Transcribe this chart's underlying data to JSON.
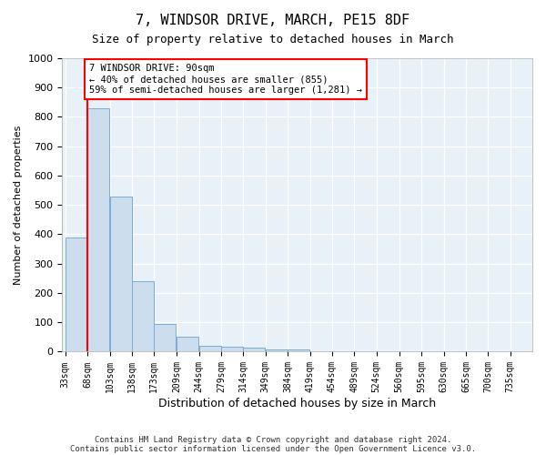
{
  "title1": "7, WINDSOR DRIVE, MARCH, PE15 8DF",
  "title2": "Size of property relative to detached houses in March",
  "xlabel": "Distribution of detached houses by size in March",
  "ylabel": "Number of detached properties",
  "bins": [
    33,
    68,
    103,
    138,
    173,
    209,
    244,
    279,
    314,
    349,
    384,
    419,
    454,
    489,
    524,
    560,
    595,
    630,
    665,
    700,
    735
  ],
  "counts": [
    390,
    830,
    530,
    240,
    95,
    50,
    20,
    18,
    13,
    8,
    8,
    0,
    0,
    0,
    0,
    0,
    0,
    0,
    0,
    0
  ],
  "bar_color": "#ccdded",
  "bar_edge_color": "#7aadd0",
  "vline_x_bin_index": 1,
  "vline_color": "red",
  "annotation_text": "7 WINDSOR DRIVE: 90sqm\n← 40% of detached houses are smaller (855)\n59% of semi-detached houses are larger (1,281) →",
  "annotation_box_color": "white",
  "annotation_box_edge_color": "red",
  "ylim": [
    0,
    1000
  ],
  "yticks": [
    0,
    100,
    200,
    300,
    400,
    500,
    600,
    700,
    800,
    900,
    1000
  ],
  "footnote1": "Contains HM Land Registry data © Crown copyright and database right 2024.",
  "footnote2": "Contains public sector information licensed under the Open Government Licence v3.0.",
  "bg_color": "#ffffff",
  "plot_bg_color": "#e8f0f8",
  "grid_color": "#ffffff",
  "title1_fontsize": 11,
  "title2_fontsize": 9,
  "ylabel_fontsize": 8,
  "xlabel_fontsize": 9,
  "tick_fontsize": 7,
  "annot_fontsize": 7.5,
  "footnote_fontsize": 6.5
}
